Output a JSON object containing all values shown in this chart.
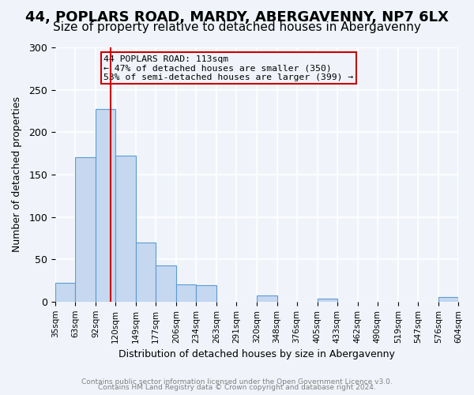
{
  "title1": "44, POPLARS ROAD, MARDY, ABERGAVENNY, NP7 6LX",
  "title2": "Size of property relative to detached houses in Abergavenny",
  "xlabel": "Distribution of detached houses by size in Abergavenny",
  "ylabel": "Number of detached properties",
  "bar_heights": [
    22,
    170,
    227,
    172,
    70,
    43,
    20,
    19,
    0,
    0,
    7,
    0,
    0,
    4,
    0,
    0,
    0,
    0,
    0,
    5
  ],
  "bin_edges": [
    35,
    63,
    92,
    120,
    149,
    177,
    206,
    234,
    263,
    291,
    320,
    348,
    376,
    405,
    433,
    462,
    490,
    519,
    547,
    576,
    604
  ],
  "tick_labels": [
    "35sqm",
    "63sqm",
    "92sqm",
    "120sqm",
    "149sqm",
    "177sqm",
    "206sqm",
    "234sqm",
    "263sqm",
    "291sqm",
    "320sqm",
    "348sqm",
    "376sqm",
    "405sqm",
    "433sqm",
    "462sqm",
    "490sqm",
    "519sqm",
    "547sqm",
    "576sqm",
    "604sqm"
  ],
  "bar_color": "#c5d8f0",
  "bar_edge_color": "#5b9bd5",
  "vline_x": 113,
  "vline_color": "#cc0000",
  "ylim": [
    0,
    300
  ],
  "yticks": [
    0,
    50,
    100,
    150,
    200,
    250,
    300
  ],
  "annotation_title": "44 POPLARS ROAD: 113sqm",
  "annotation_line1": "← 47% of detached houses are smaller (350)",
  "annotation_line2": "53% of semi-detached houses are larger (399) →",
  "annotation_box_color": "#cc0000",
  "footer1": "Contains HM Land Registry data © Crown copyright and database right 2024.",
  "footer2": "Contains public sector information licensed under the Open Government Licence v3.0.",
  "background_color": "#f0f4fa",
  "grid_color": "#ffffff",
  "title1_fontsize": 13,
  "title2_fontsize": 11
}
